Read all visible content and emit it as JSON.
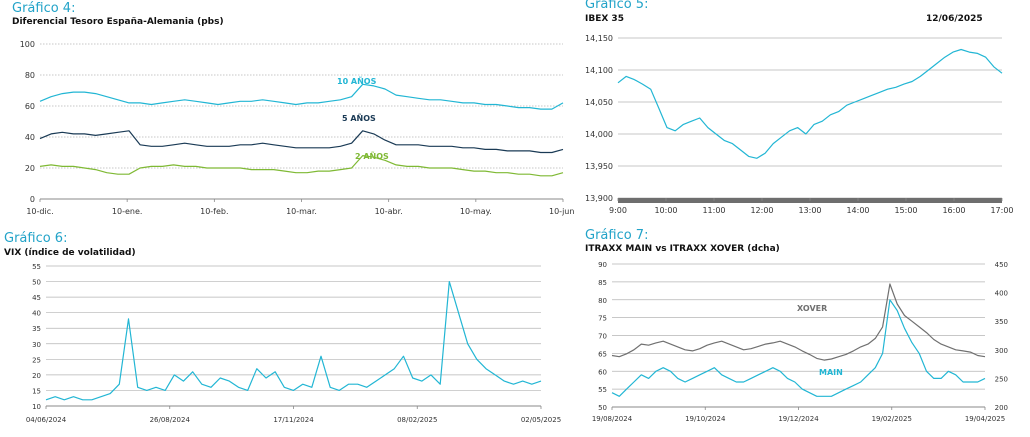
{
  "colors": {
    "title": "#22a3c8",
    "teal": "#22b6d4",
    "navy": "#1a3a55",
    "green": "#7fb934",
    "gray": "#707070",
    "grid": "#aaaaaa"
  },
  "chart_data": [
    {
      "id": "g4",
      "type": "line",
      "label": "Gráfico 4:",
      "title": "Diferencial Tesoro España-Alemania (pbs)",
      "ylim": [
        0,
        100
      ],
      "yticks": [
        "0",
        "20",
        "40",
        "60",
        "80",
        "100"
      ],
      "xticks": [
        "10-dic.",
        "10-ene.",
        "10-feb.",
        "10-mar.",
        "10-abr.",
        "10-may.",
        "10-jun."
      ],
      "grid": true,
      "series": [
        {
          "name": "10 AÑOS",
          "color": "#22b6d4",
          "values": [
            63,
            66,
            68,
            69,
            69,
            68,
            66,
            64,
            62,
            62,
            61,
            62,
            63,
            64,
            63,
            62,
            61,
            62,
            63,
            63,
            64,
            63,
            62,
            61,
            62,
            62,
            63,
            64,
            66,
            74,
            73,
            71,
            67,
            66,
            65,
            64,
            64,
            63,
            62,
            62,
            61,
            61,
            60,
            59,
            59,
            58,
            58,
            62
          ]
        },
        {
          "name": "5 AÑOS",
          "color": "#1a3a55",
          "values": [
            39,
            42,
            43,
            42,
            42,
            41,
            42,
            43,
            44,
            35,
            34,
            34,
            35,
            36,
            35,
            34,
            34,
            34,
            35,
            35,
            36,
            35,
            34,
            33,
            33,
            33,
            33,
            34,
            36,
            44,
            42,
            38,
            35,
            35,
            35,
            34,
            34,
            34,
            33,
            33,
            32,
            32,
            31,
            31,
            31,
            30,
            30,
            32
          ]
        },
        {
          "name": "2 AÑOS",
          "color": "#7fb934",
          "values": [
            21,
            22,
            21,
            21,
            20,
            19,
            17,
            16,
            16,
            20,
            21,
            21,
            22,
            21,
            21,
            20,
            20,
            20,
            20,
            19,
            19,
            19,
            18,
            17,
            17,
            18,
            18,
            19,
            20,
            28,
            27,
            25,
            22,
            21,
            21,
            20,
            20,
            20,
            19,
            18,
            18,
            17,
            17,
            16,
            16,
            15,
            15,
            17
          ]
        }
      ]
    },
    {
      "id": "g5",
      "type": "line",
      "label": "Gráfico 5:",
      "title": "IBEX 35",
      "date": "12/06/2025",
      "ylim": [
        13900,
        14150
      ],
      "yticks": [
        "13,900",
        "13,950",
        "14,000",
        "14,050",
        "14,100",
        "14,150"
      ],
      "xticks": [
        "9:00",
        "10:00",
        "11:00",
        "12:00",
        "13:00",
        "14:00",
        "15:00",
        "16:00",
        "17:00"
      ],
      "grid": true,
      "series": [
        {
          "name": "",
          "color": "#22b6d4",
          "values": [
            14080,
            14090,
            14085,
            14078,
            14070,
            14040,
            14010,
            14005,
            14015,
            14020,
            14025,
            14010,
            14000,
            13990,
            13985,
            13975,
            13965,
            13962,
            13970,
            13985,
            13995,
            14005,
            14010,
            14000,
            14015,
            14020,
            14030,
            14035,
            14045,
            14050,
            14055,
            14060,
            14065,
            14070,
            14073,
            14078,
            14082,
            14090,
            14100,
            14110,
            14120,
            14128,
            14132,
            14128,
            14126,
            14120,
            14105,
            14095
          ]
        }
      ]
    },
    {
      "id": "g6",
      "type": "line",
      "label": "Gráfico 6:",
      "title": "VIX (índice de volatilidad)",
      "ylim": [
        10,
        55
      ],
      "yticks": [
        "10",
        "15",
        "20",
        "25",
        "30",
        "35",
        "40",
        "45",
        "50",
        "55"
      ],
      "xticks": [
        "04/06/2024",
        "26/08/2024",
        "17/11/2024",
        "08/02/2025",
        "02/05/2025"
      ],
      "grid": true,
      "series": [
        {
          "name": "",
          "color": "#22b6d4",
          "values": [
            12,
            13,
            12,
            13,
            12,
            12,
            13,
            14,
            17,
            38,
            16,
            15,
            16,
            15,
            20,
            18,
            21,
            17,
            16,
            19,
            18,
            16,
            15,
            22,
            19,
            21,
            16,
            15,
            17,
            16,
            26,
            16,
            15,
            17,
            17,
            16,
            18,
            20,
            22,
            26,
            19,
            18,
            20,
            17,
            50,
            40,
            30,
            25,
            22,
            20,
            18,
            17,
            18,
            17,
            18
          ]
        }
      ]
    },
    {
      "id": "g7",
      "type": "line",
      "label": "Gráfico 7:",
      "title": "ITRAXX MAIN vs ITRAXX XOVER (dcha)",
      "ylim": [
        50,
        90
      ],
      "ylim_right": [
        200,
        450
      ],
      "yticks": [
        "50",
        "55",
        "60",
        "65",
        "70",
        "75",
        "80",
        "85",
        "90"
      ],
      "yticks_right": [
        "200",
        "250",
        "300",
        "350",
        "400",
        "450"
      ],
      "xticks": [
        "19/08/2024",
        "19/10/2024",
        "19/12/2024",
        "19/02/2025",
        "19/04/2025"
      ],
      "grid": true,
      "series": [
        {
          "name": "XOVER",
          "color": "#707070",
          "axis": "right",
          "values": [
            290,
            288,
            293,
            300,
            310,
            308,
            312,
            315,
            310,
            305,
            300,
            298,
            302,
            308,
            312,
            315,
            310,
            305,
            300,
            302,
            306,
            310,
            312,
            315,
            310,
            305,
            298,
            292,
            285,
            282,
            284,
            288,
            292,
            298,
            305,
            310,
            320,
            340,
            415,
            380,
            360,
            350,
            340,
            330,
            318,
            310,
            305,
            300,
            298,
            296,
            290,
            288
          ]
        },
        {
          "name": "MAIN",
          "color": "#22b6d4",
          "axis": "left",
          "values": [
            54,
            53,
            55,
            57,
            59,
            58,
            60,
            61,
            60,
            58,
            57,
            58,
            59,
            60,
            61,
            59,
            58,
            57,
            57,
            58,
            59,
            60,
            61,
            60,
            58,
            57,
            55,
            54,
            53,
            53,
            53,
            54,
            55,
            56,
            57,
            59,
            61,
            65,
            80,
            77,
            72,
            68,
            65,
            60,
            58,
            58,
            60,
            59,
            57,
            57,
            57,
            58
          ]
        }
      ]
    }
  ]
}
